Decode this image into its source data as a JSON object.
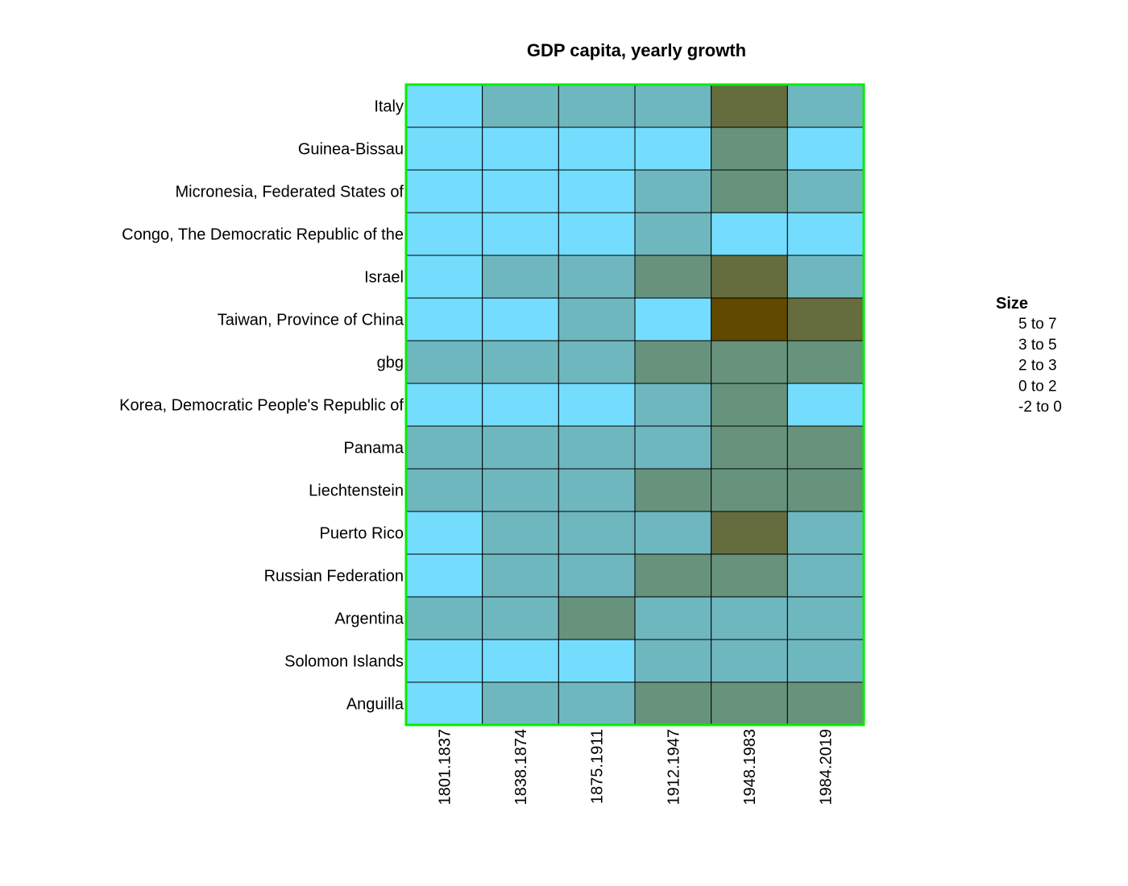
{
  "chart_data": {
    "type": "heatmap",
    "title": "GDP capita, yearly growth",
    "rows": [
      "Italy",
      "Guinea-Bissau",
      "Micronesia, Federated States of",
      "Congo, The Democratic Republic of the",
      "Israel",
      "Taiwan, Province of China",
      "gbg",
      "Korea, Democratic People's Republic of",
      "Panama",
      "Liechtenstein",
      "Puerto Rico",
      "Russian Federation",
      "Argentina",
      "Solomon Islands",
      "Anguilla"
    ],
    "columns": [
      "1801.1837",
      "1838.1874",
      "1875.1911",
      "1912.1947",
      "1948.1983",
      "1984.2019"
    ],
    "bin_index_values": [
      [
        4,
        3,
        3,
        3,
        1,
        3
      ],
      [
        4,
        4,
        4,
        4,
        2,
        4
      ],
      [
        4,
        4,
        4,
        3,
        2,
        3
      ],
      [
        4,
        4,
        4,
        3,
        4,
        4
      ],
      [
        4,
        3,
        3,
        2,
        1,
        3
      ],
      [
        4,
        4,
        3,
        4,
        0,
        1
      ],
      [
        3,
        3,
        3,
        2,
        2,
        2
      ],
      [
        4,
        4,
        4,
        3,
        2,
        4
      ],
      [
        3,
        3,
        3,
        3,
        2,
        2
      ],
      [
        3,
        3,
        3,
        2,
        2,
        2
      ],
      [
        4,
        3,
        3,
        3,
        1,
        3
      ],
      [
        4,
        3,
        3,
        2,
        2,
        3
      ],
      [
        3,
        3,
        2,
        3,
        3,
        3
      ],
      [
        4,
        4,
        4,
        3,
        3,
        3
      ],
      [
        4,
        3,
        3,
        2,
        2,
        2
      ]
    ],
    "legend": {
      "title": "Size",
      "placement": "right",
      "bins": [
        {
          "low": "5",
          "high": "7",
          "color": "#614900"
        },
        {
          "low": "3",
          "high": "5",
          "color": "#656D3F"
        },
        {
          "low": "2",
          "high": "3",
          "color": "#67937D"
        },
        {
          "low": "0",
          "high": "2",
          "color": "#6FB7BF"
        },
        {
          "low": "-2",
          "high": "0",
          "color": "#74DCFC"
        }
      ],
      "connector": "to"
    },
    "frame_color": "#00EE00"
  }
}
